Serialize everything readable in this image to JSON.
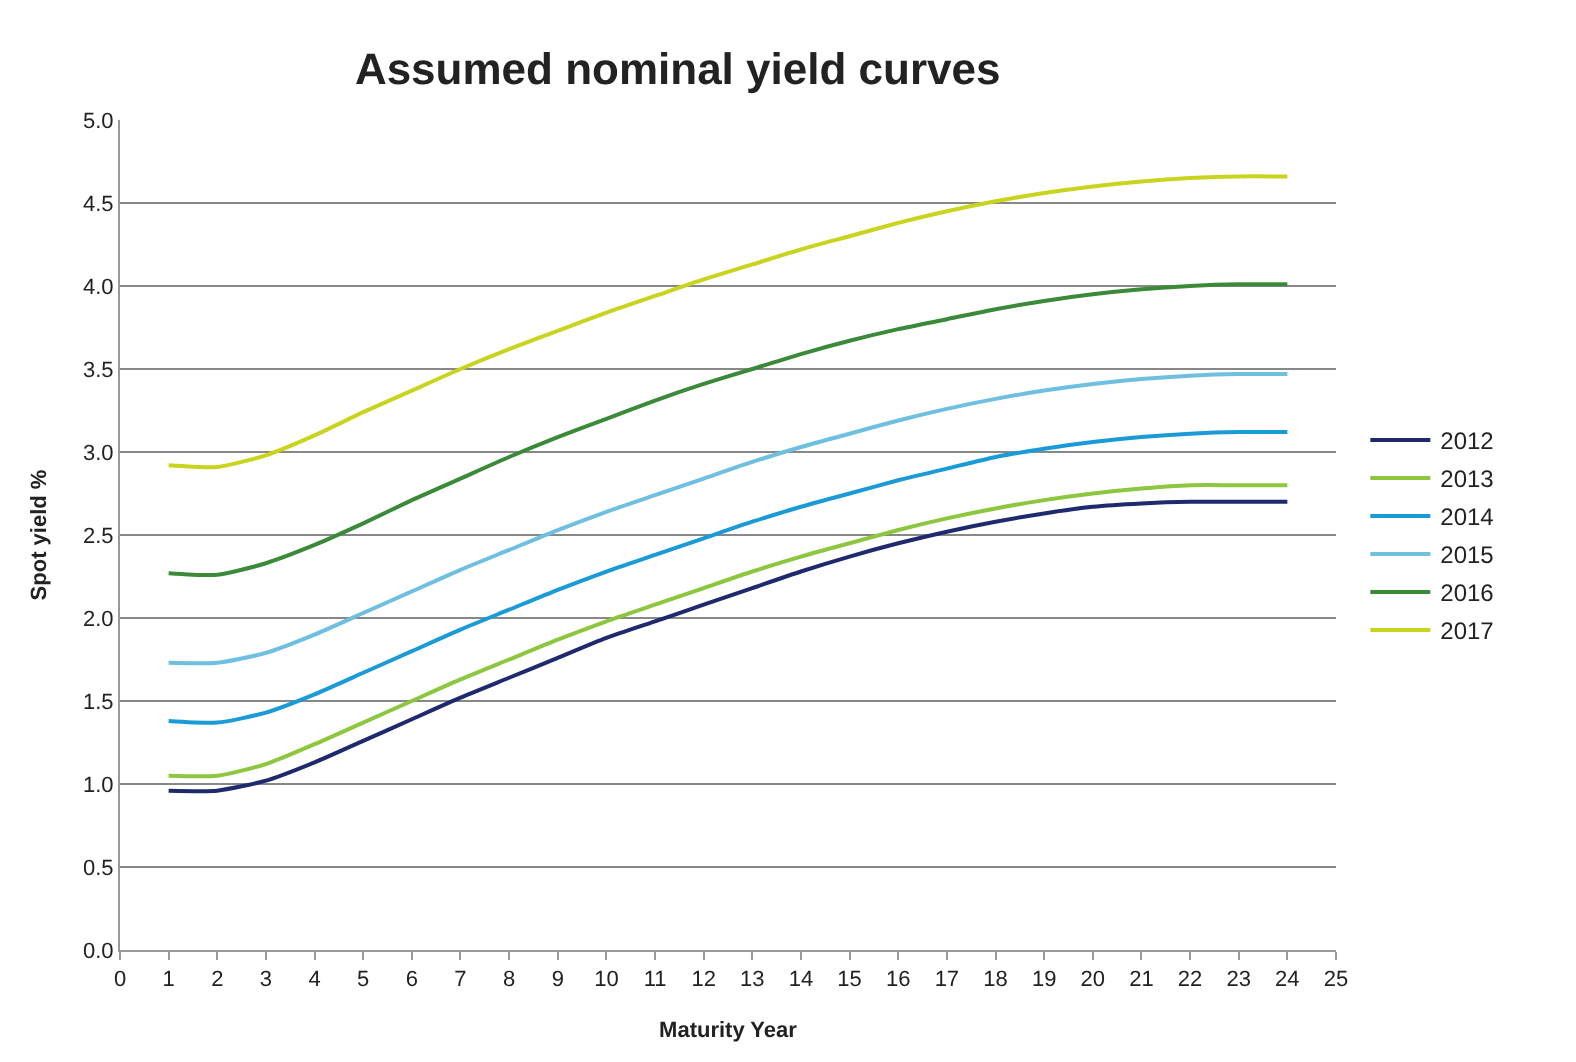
{
  "chart_data": {
    "type": "line",
    "title": "Assumed nominal yield curves",
    "xlabel": "Maturity Year",
    "ylabel": "Spot yield %",
    "x": [
      1,
      2,
      3,
      4,
      5,
      6,
      7,
      8,
      9,
      10,
      11,
      12,
      13,
      14,
      15,
      16,
      17,
      18,
      19,
      20,
      21,
      22,
      23,
      24
    ],
    "xlim": [
      0,
      25
    ],
    "xticks": [
      0,
      1,
      2,
      3,
      4,
      5,
      6,
      7,
      8,
      9,
      10,
      11,
      12,
      13,
      14,
      15,
      16,
      17,
      18,
      19,
      20,
      21,
      22,
      23,
      24,
      25
    ],
    "ylim": [
      0,
      5
    ],
    "yticks": [
      {
        "value": 0,
        "label": "0.0"
      },
      {
        "value": 0.5,
        "label": "0.5"
      },
      {
        "value": 1,
        "label": "1.0"
      },
      {
        "value": 1.5,
        "label": "1.5"
      },
      {
        "value": 2,
        "label": "2.0"
      },
      {
        "value": 2.5,
        "label": "2.5"
      },
      {
        "value": 3,
        "label": "3.0"
      },
      {
        "value": 3.5,
        "label": "3.5"
      },
      {
        "value": 4,
        "label": "4.0"
      },
      {
        "value": 4.5,
        "label": "4.5"
      },
      {
        "value": 5,
        "label": "5.0"
      }
    ],
    "grid": "y",
    "legend": "right",
    "marker": "none",
    "line_style": "solid",
    "series": [
      {
        "name": "2012",
        "color": "#1f2a6e",
        "values": [
          0.96,
          0.96,
          1.02,
          1.13,
          1.26,
          1.39,
          1.52,
          1.64,
          1.76,
          1.88,
          1.98,
          2.08,
          2.18,
          2.28,
          2.37,
          2.45,
          2.52,
          2.58,
          2.63,
          2.67,
          2.69,
          2.7,
          2.7,
          2.7
        ]
      },
      {
        "name": "2013",
        "color": "#8dc63f",
        "values": [
          1.05,
          1.05,
          1.12,
          1.24,
          1.37,
          1.5,
          1.63,
          1.75,
          1.87,
          1.98,
          2.08,
          2.18,
          2.28,
          2.37,
          2.45,
          2.53,
          2.6,
          2.66,
          2.71,
          2.75,
          2.78,
          2.8,
          2.8,
          2.8
        ]
      },
      {
        "name": "2014",
        "color": "#1a9ad6",
        "values": [
          1.38,
          1.37,
          1.43,
          1.54,
          1.67,
          1.8,
          1.93,
          2.05,
          2.17,
          2.28,
          2.38,
          2.48,
          2.58,
          2.67,
          2.75,
          2.83,
          2.9,
          2.97,
          3.02,
          3.06,
          3.09,
          3.11,
          3.12,
          3.12
        ]
      },
      {
        "name": "2015",
        "color": "#6fbfe0",
        "values": [
          1.73,
          1.73,
          1.79,
          1.9,
          2.03,
          2.16,
          2.29,
          2.41,
          2.53,
          2.64,
          2.74,
          2.84,
          2.94,
          3.03,
          3.11,
          3.19,
          3.26,
          3.32,
          3.37,
          3.41,
          3.44,
          3.46,
          3.47,
          3.47
        ]
      },
      {
        "name": "2016",
        "color": "#3a8a3a",
        "values": [
          2.27,
          2.26,
          2.33,
          2.44,
          2.57,
          2.71,
          2.84,
          2.97,
          3.09,
          3.2,
          3.31,
          3.41,
          3.5,
          3.59,
          3.67,
          3.74,
          3.8,
          3.86,
          3.91,
          3.95,
          3.98,
          4.0,
          4.01,
          4.01
        ]
      },
      {
        "name": "2017",
        "color": "#c8d41e",
        "values": [
          2.92,
          2.91,
          2.98,
          3.1,
          3.24,
          3.37,
          3.5,
          3.62,
          3.73,
          3.84,
          3.94,
          4.04,
          4.13,
          4.22,
          4.3,
          4.38,
          4.45,
          4.51,
          4.56,
          4.6,
          4.63,
          4.65,
          4.66,
          4.66
        ]
      }
    ]
  }
}
